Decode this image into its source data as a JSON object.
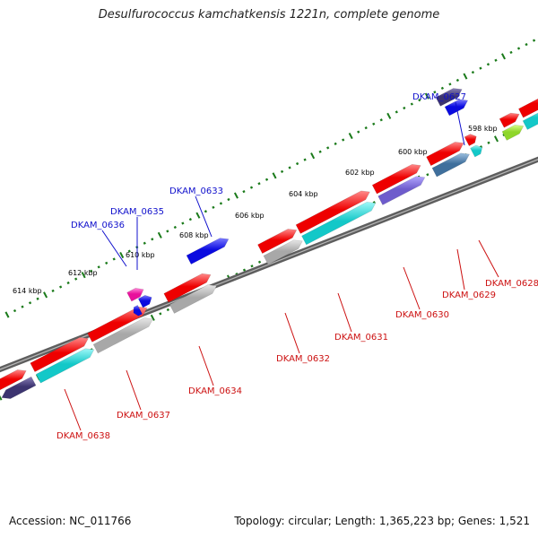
{
  "title": "Desulfurococcus kamchatkensis 1221n, complete genome",
  "footer": {
    "accession": "Accession: NC_011766",
    "summary": "Topology: circular; Length: 1,365,223 bp; Genes: 1,521"
  },
  "colors": {
    "backbone": "#7a7a7a",
    "tick": "#1a7a1a",
    "label_top": "#1010cc",
    "label_bottom": "#cc1010"
  },
  "scale_ticks": [
    {
      "text": "598 kbp"
    },
    {
      "text": "600 kbp"
    },
    {
      "text": "602 kbp"
    },
    {
      "text": "604 kbp"
    },
    {
      "text": "606 kbp"
    },
    {
      "text": "608 kbp"
    },
    {
      "text": "610 kbp"
    },
    {
      "text": "612 kbp"
    },
    {
      "text": "614 kbp"
    }
  ],
  "gene_labels_top": [
    {
      "text": "DKAM_0627"
    },
    {
      "text": "DKAM_0633"
    },
    {
      "text": "DKAM_0635"
    },
    {
      "text": "DKAM_0636"
    }
  ],
  "gene_labels_bottom": [
    {
      "text": "DKAM_0628"
    },
    {
      "text": "DKAM_0629"
    },
    {
      "text": "DKAM_0630"
    },
    {
      "text": "DKAM_0631"
    },
    {
      "text": "DKAM_0632"
    },
    {
      "text": "DKAM_0634"
    },
    {
      "text": "DKAM_0637"
    },
    {
      "text": "DKAM_0638"
    }
  ]
}
